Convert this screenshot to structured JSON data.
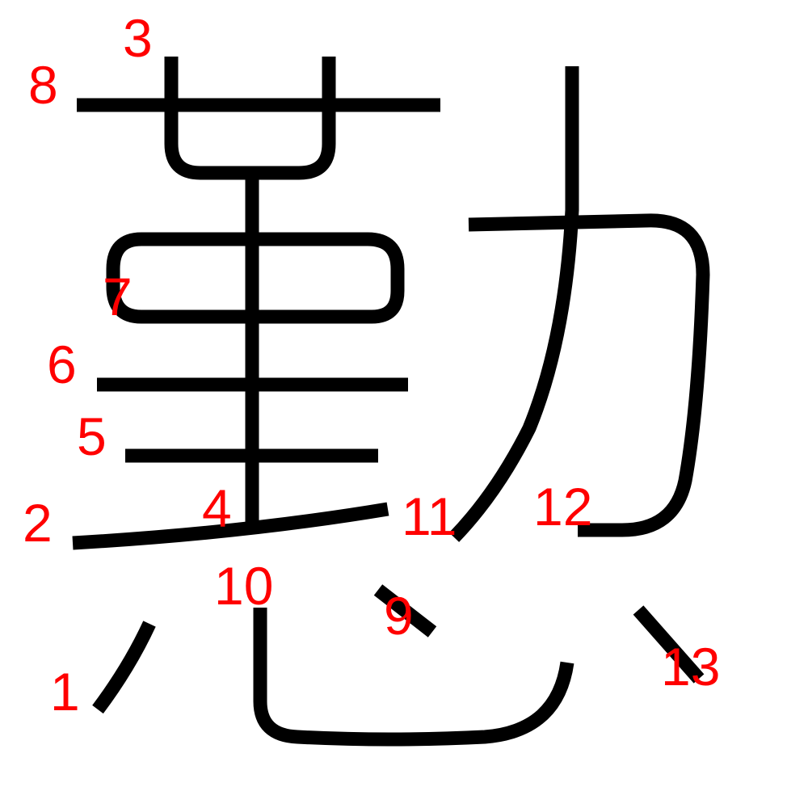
{
  "diagram": {
    "colors": {
      "stroke": "#000000",
      "number": "#ff0000",
      "background": "#ffffff"
    },
    "stroke_numbers": {
      "s1": "1",
      "s2": "2",
      "s3": "3",
      "s4": "4",
      "s5": "5",
      "s6": "6",
      "s7": "7",
      "s8": "8",
      "s9": "9",
      "s10": "10",
      "s11": "11",
      "s12": "12",
      "s13": "13"
    }
  }
}
